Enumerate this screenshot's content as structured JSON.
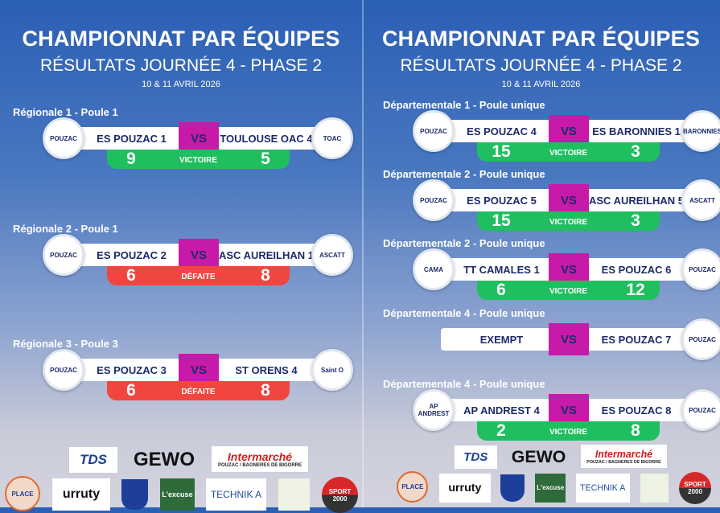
{
  "title": "CHAMPIONNAT PAR ÉQUIPES",
  "subtitle": "RÉSULTATS JOURNÉE 4 - PHASE 2",
  "date": "10 & 11 AVRIL 2026",
  "colors": {
    "win": "#1fbf5f",
    "loss": "#f0463f",
    "vs": "#c81aa8",
    "text": "#1d2a6b"
  },
  "vs_label": "VS",
  "left_matches": [
    {
      "label": "Régionale 1 - Poule 1",
      "home": "ES POUZAC 1",
      "away": "TOULOUSE OAC 4",
      "home_score": "9",
      "away_score": "5",
      "result": "VICTOIRE",
      "home_logo": "POUZAC",
      "away_logo": "TOAC"
    },
    {
      "label": "Régionale 2 - Poule 1",
      "home": "ES POUZAC 2",
      "away": "ASC AUREILHAN 1",
      "home_score": "6",
      "away_score": "8",
      "result": "DÉFAITE",
      "home_logo": "POUZAC",
      "away_logo": "ASCATT"
    },
    {
      "label": "Régionale 3 - Poule 3",
      "home": "ES POUZAC 3",
      "away": "ST ORENS 4",
      "home_score": "6",
      "away_score": "8",
      "result": "DÉFAITE",
      "home_logo": "POUZAC",
      "away_logo": "Saint O"
    }
  ],
  "right_matches": [
    {
      "label": "Départementale 1 - Poule unique",
      "home": "ES POUZAC 4",
      "away": "ES BARONNIES 1",
      "home_score": "15",
      "away_score": "3",
      "result": "VICTOIRE",
      "home_logo": "POUZAC",
      "away_logo": "BARONNIES"
    },
    {
      "label": "Départementale 2 - Poule unique",
      "home": "ES POUZAC 5",
      "away": "ASC AUREILHAN 5",
      "home_score": "15",
      "away_score": "3",
      "result": "VICTOIRE",
      "home_logo": "POUZAC",
      "away_logo": "ASCATT"
    },
    {
      "label": "Départementale 2 - Poule unique",
      "home": "TT CAMALES 1",
      "away": "ES POUZAC 6",
      "home_score": "6",
      "away_score": "12",
      "result": "VICTOIRE",
      "home_logo": "CAMA",
      "away_logo": "POUZAC"
    },
    {
      "label": "Départementale 4 - Poule unique",
      "home": "EXEMPT",
      "away": "ES POUZAC 7",
      "home_score": null,
      "away_score": null,
      "result": null,
      "home_logo": null,
      "away_logo": "POUZAC"
    },
    {
      "label": "Départementale 4 - Poule unique",
      "home": "AP ANDREST 4",
      "away": "ES POUZAC 8",
      "home_score": "2",
      "away_score": "8",
      "result": "VICTOIRE",
      "home_logo": "AP ANDREST",
      "away_logo": "POUZAC"
    }
  ],
  "sponsors": {
    "tds": "TDS",
    "gewo": "GEWO",
    "intermarche": "Intermarché",
    "intermarche_sub": "POUZAC / BAGNERES DE BIGORRE",
    "place": "PLACE",
    "urruty": "urruty",
    "excuse": "L'excuse",
    "technik": "TECHNIK A",
    "sport2000": "SPORT 2000"
  }
}
